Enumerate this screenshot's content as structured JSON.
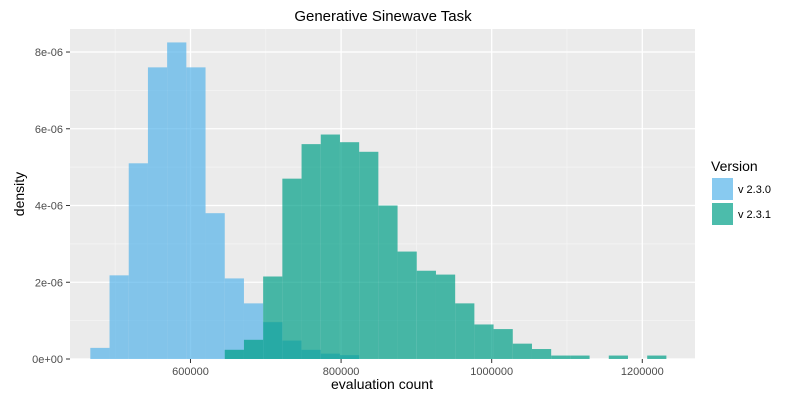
{
  "chart_data": {
    "type": "histogram",
    "title": "Generative Sinewave Task",
    "xlabel": "evaluation count",
    "ylabel": "density",
    "xlim": [
      440000,
      1270000
    ],
    "ylim": [
      0,
      8.6e-06
    ],
    "x_ticks": [
      {
        "value": 600000,
        "label": "600000"
      },
      {
        "value": 800000,
        "label": "800000"
      },
      {
        "value": 1000000,
        "label": "1000000"
      },
      {
        "value": 1200000,
        "label": "1200000"
      }
    ],
    "y_ticks": [
      {
        "value": 0,
        "label": "0e+00"
      },
      {
        "value": 2e-06,
        "label": "2e-06"
      },
      {
        "value": 4e-06,
        "label": "4e-06"
      },
      {
        "value": 6e-06,
        "label": "6e-06"
      },
      {
        "value": 8e-06,
        "label": "8e-06"
      }
    ],
    "bin_width": 25500,
    "grid": true,
    "legend": {
      "title": "Version",
      "placement": "right"
    },
    "series": [
      {
        "name": "v 2.3.0",
        "color": "#56B4E9",
        "bins": [
          {
            "x0": 467000,
            "x1": 492500,
            "density": 2.9e-07
          },
          {
            "x0": 492500,
            "x1": 518000,
            "density": 2.18e-06
          },
          {
            "x0": 518000,
            "x1": 543500,
            "density": 5.1e-06
          },
          {
            "x0": 543500,
            "x1": 569000,
            "density": 7.6e-06
          },
          {
            "x0": 569000,
            "x1": 594500,
            "density": 8.25e-06
          },
          {
            "x0": 594500,
            "x1": 620000,
            "density": 7.6e-06
          },
          {
            "x0": 620000,
            "x1": 645500,
            "density": 3.8e-06
          },
          {
            "x0": 645500,
            "x1": 671000,
            "density": 2.1e-06
          },
          {
            "x0": 671000,
            "x1": 696500,
            "density": 1.45e-06
          },
          {
            "x0": 696500,
            "x1": 722000,
            "density": 9.6e-07
          },
          {
            "x0": 722000,
            "x1": 747500,
            "density": 4.8e-07
          },
          {
            "x0": 747500,
            "x1": 773000,
            "density": 2.4e-07
          },
          {
            "x0": 773000,
            "x1": 798500,
            "density": 1.4e-07
          },
          {
            "x0": 798500,
            "x1": 824000,
            "density": 1e-07
          }
        ]
      },
      {
        "name": "v 2.3.1",
        "color": "#00A087",
        "bins": [
          {
            "x0": 645500,
            "x1": 671000,
            "density": 2.4e-07
          },
          {
            "x0": 671000,
            "x1": 696500,
            "density": 5e-07
          },
          {
            "x0": 696500,
            "x1": 722000,
            "density": 2.15e-06
          },
          {
            "x0": 722000,
            "x1": 747500,
            "density": 4.7e-06
          },
          {
            "x0": 747500,
            "x1": 773000,
            "density": 5.6e-06
          },
          {
            "x0": 773000,
            "x1": 798500,
            "density": 5.85e-06
          },
          {
            "x0": 798500,
            "x1": 824000,
            "density": 5.65e-06
          },
          {
            "x0": 824000,
            "x1": 849500,
            "density": 5.4e-06
          },
          {
            "x0": 849500,
            "x1": 875000,
            "density": 4e-06
          },
          {
            "x0": 875000,
            "x1": 900500,
            "density": 2.8e-06
          },
          {
            "x0": 900500,
            "x1": 926000,
            "density": 2.3e-06
          },
          {
            "x0": 926000,
            "x1": 951500,
            "density": 2.2e-06
          },
          {
            "x0": 951500,
            "x1": 977000,
            "density": 1.45e-06
          },
          {
            "x0": 977000,
            "x1": 1002500,
            "density": 9e-07
          },
          {
            "x0": 1002500,
            "x1": 1028000,
            "density": 7.8e-07
          },
          {
            "x0": 1028000,
            "x1": 1053500,
            "density": 4e-07
          },
          {
            "x0": 1053500,
            "x1": 1079000,
            "density": 2.6e-07
          },
          {
            "x0": 1079000,
            "x1": 1104500,
            "density": 9e-08
          },
          {
            "x0": 1104500,
            "x1": 1130000,
            "density": 9e-08
          },
          {
            "x0": 1155500,
            "x1": 1181000,
            "density": 9e-08
          },
          {
            "x0": 1206500,
            "x1": 1232000,
            "density": 9e-08
          }
        ]
      }
    ]
  }
}
